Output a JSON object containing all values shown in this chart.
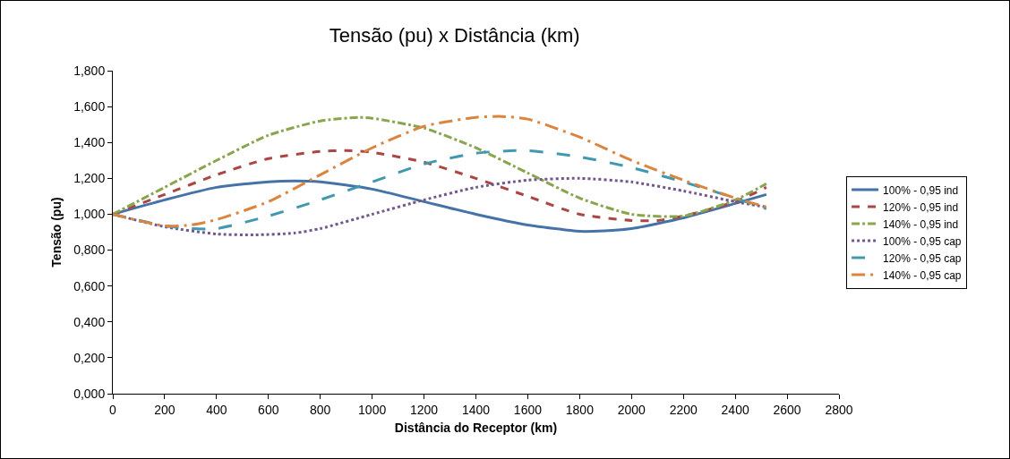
{
  "chart_data": {
    "type": "line",
    "title": "Tensão (pu) x Distância (km)",
    "xlabel": "Distância do Receptor (km)",
    "ylabel": "Tensão (pu)",
    "xlim": [
      0,
      2800
    ],
    "xticks": [
      0,
      200,
      400,
      600,
      800,
      1000,
      1200,
      1400,
      1600,
      1800,
      2000,
      2200,
      2400,
      2600,
      2800
    ],
    "ylim": [
      0,
      1.8
    ],
    "yticks": [
      {
        "value": 0,
        "label": "0,000"
      },
      {
        "value": 0.2,
        "label": "0,200"
      },
      {
        "value": 0.4,
        "label": "0,400"
      },
      {
        "value": 0.6,
        "label": "0,600"
      },
      {
        "value": 0.8,
        "label": "0,800"
      },
      {
        "value": 1,
        "label": "1,000"
      },
      {
        "value": 1.2,
        "label": "1,200"
      },
      {
        "value": 1.4,
        "label": "1,400"
      },
      {
        "value": 1.6,
        "label": "1,600"
      },
      {
        "value": 1.8,
        "label": "1,800"
      }
    ],
    "grid": false,
    "legend": "right",
    "marker": "none",
    "series": [
      {
        "name": "100% - 0,95 ind",
        "color": "#4572a7",
        "line_style": "solid",
        "x": [
          0,
          200,
          400,
          600,
          700,
          800,
          1000,
          1200,
          1400,
          1600,
          1800,
          1850,
          2000,
          2200,
          2400,
          2520
        ],
        "values": [
          1.0,
          1.08,
          1.15,
          1.18,
          1.185,
          1.18,
          1.14,
          1.07,
          1.0,
          0.94,
          0.905,
          0.905,
          0.92,
          0.98,
          1.06,
          1.11
        ]
      },
      {
        "name": "120% - 0,95 ind",
        "color": "#aa4643",
        "line_style": "dashed",
        "x": [
          0,
          200,
          400,
          600,
          800,
          900,
          1000,
          1200,
          1400,
          1600,
          1800,
          2000,
          2100,
          2200,
          2400,
          2520
        ],
        "values": [
          1.0,
          1.11,
          1.22,
          1.31,
          1.35,
          1.355,
          1.345,
          1.29,
          1.2,
          1.1,
          1.0,
          0.965,
          0.965,
          0.99,
          1.07,
          1.15
        ]
      },
      {
        "name": "140% - 0,95 ind",
        "color": "#89a54e",
        "line_style": "dashdot",
        "x": [
          0,
          200,
          400,
          600,
          800,
          950,
          1000,
          1200,
          1400,
          1600,
          1800,
          2000,
          2200,
          2400,
          2520
        ],
        "values": [
          1.0,
          1.15,
          1.3,
          1.44,
          1.52,
          1.54,
          1.535,
          1.48,
          1.37,
          1.23,
          1.09,
          1.0,
          0.99,
          1.08,
          1.17
        ]
      },
      {
        "name": "100% - 0,95 cap",
        "color": "#71588f",
        "line_style": "dotted",
        "x": [
          0,
          200,
          400,
          550,
          700,
          800,
          1000,
          1200,
          1400,
          1600,
          1800,
          2000,
          2200,
          2400,
          2520
        ],
        "values": [
          1.0,
          0.93,
          0.89,
          0.885,
          0.895,
          0.92,
          1.0,
          1.08,
          1.15,
          1.19,
          1.2,
          1.18,
          1.13,
          1.07,
          1.04
        ]
      },
      {
        "name": "120% - 0,95 cap",
        "color": "#4198af",
        "line_style": "longdash",
        "x": [
          0,
          200,
          300,
          400,
          600,
          800,
          1000,
          1200,
          1400,
          1550,
          1600,
          1800,
          2000,
          2200,
          2400,
          2520
        ],
        "values": [
          1.0,
          0.935,
          0.92,
          0.92,
          0.99,
          1.08,
          1.18,
          1.28,
          1.34,
          1.355,
          1.355,
          1.32,
          1.26,
          1.18,
          1.09,
          1.03
        ]
      },
      {
        "name": "140% - 0,95 cap",
        "color": "#db843d",
        "line_style": "longdashdot",
        "x": [
          0,
          200,
          300,
          400,
          600,
          800,
          1000,
          1200,
          1400,
          1500,
          1600,
          1800,
          2000,
          2200,
          2400,
          2520
        ],
        "values": [
          1.0,
          0.935,
          0.94,
          0.97,
          1.07,
          1.22,
          1.37,
          1.49,
          1.54,
          1.545,
          1.53,
          1.43,
          1.3,
          1.19,
          1.09,
          1.04
        ]
      }
    ]
  }
}
